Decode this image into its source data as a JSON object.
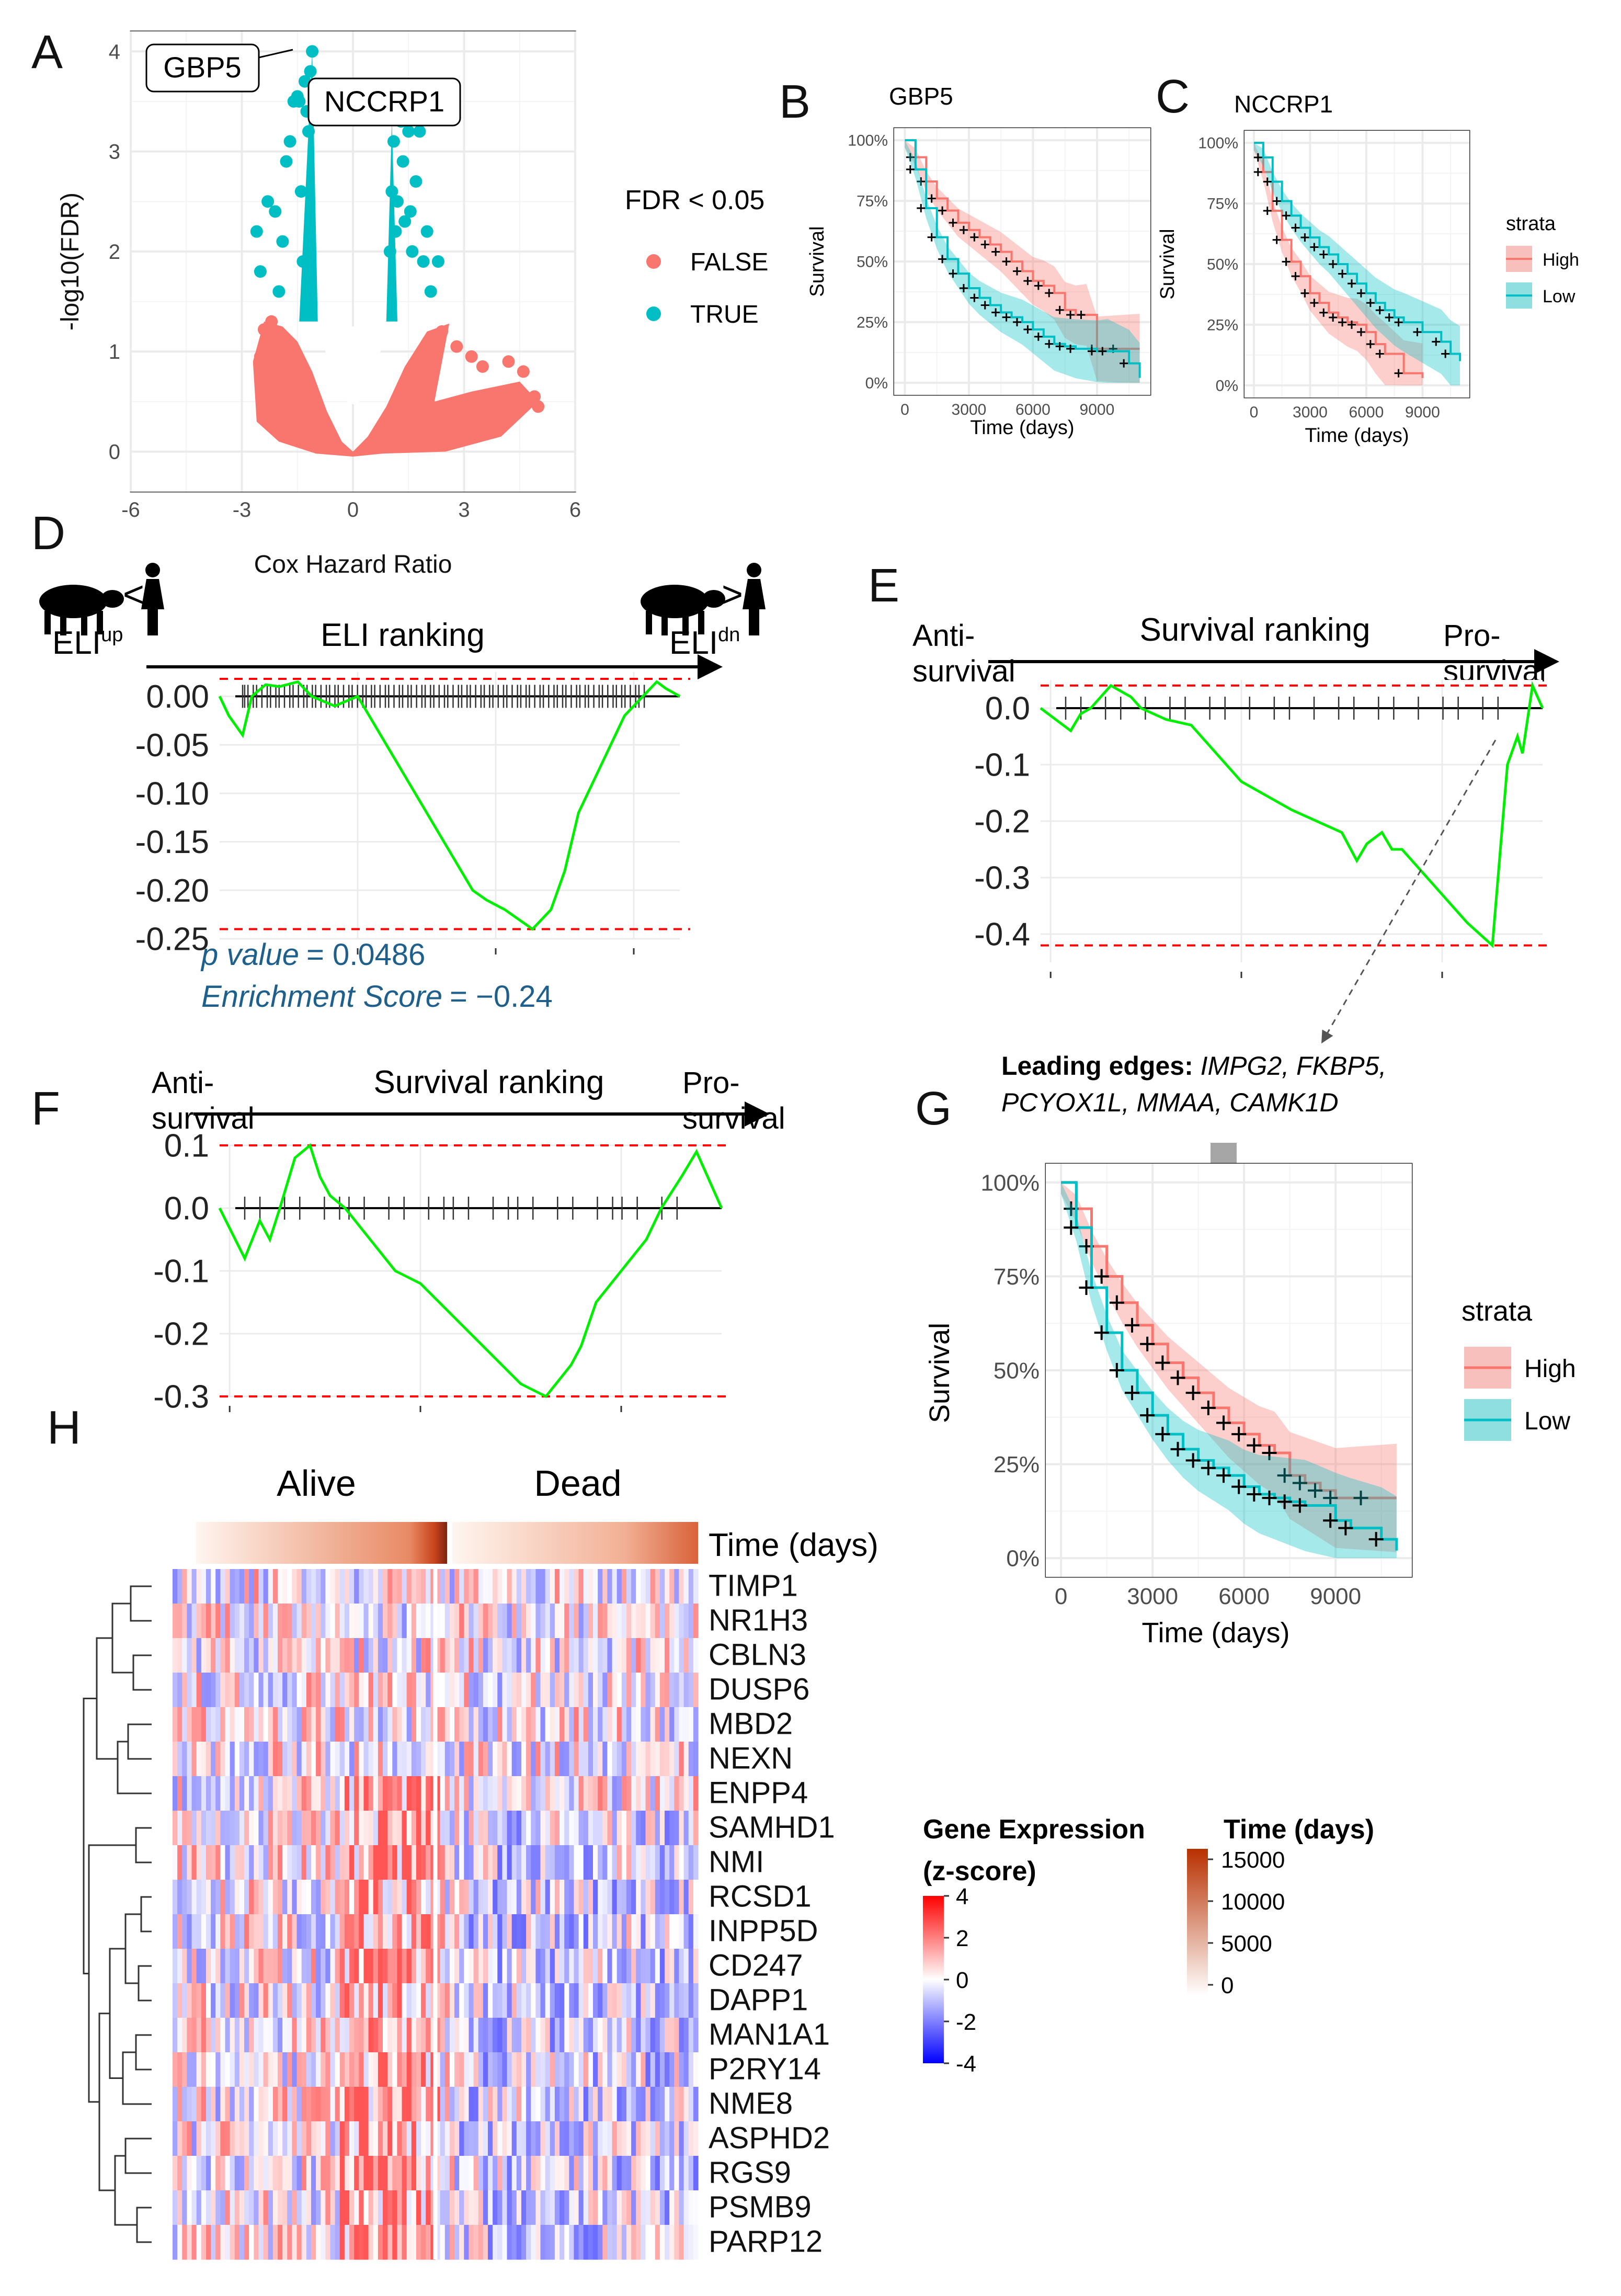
{
  "panels": {
    "A": "A",
    "B": "B",
    "C": "C",
    "D": "D",
    "E": "E",
    "F": "F",
    "G": "G",
    "H": "H"
  },
  "colors": {
    "red": "#f8766d",
    "teal": "#00bfc4",
    "green": "#00ee00",
    "ref": "#ff0000",
    "blue_text": "#1f5f8b"
  },
  "chart_data": [
    {
      "id": "A",
      "type": "scatter",
      "xlabel": "Cox Hazard Ratio",
      "ylabel": "-log10(FDR)",
      "xlim": [
        -6,
        6
      ],
      "ylim": [
        0,
        4
      ],
      "xticks": [
        "-6",
        "-3",
        "0",
        "3",
        "6"
      ],
      "yticks": [
        "0",
        "1",
        "2",
        "3",
        "4"
      ],
      "legend_title": "FDR < 0.05",
      "legend": [
        "FALSE",
        "TRUE"
      ],
      "labels": [
        {
          "text": "GBP5",
          "x": -1.1,
          "y": 4.0
        },
        {
          "text": "NCCRP1",
          "x": 1.2,
          "y": 3.5
        }
      ],
      "true_points": [
        [
          -2.6,
          2.2
        ],
        [
          -2.5,
          1.8
        ],
        [
          -2.3,
          2.5
        ],
        [
          -2.1,
          2.4
        ],
        [
          -2.0,
          1.6
        ],
        [
          -1.9,
          2.1
        ],
        [
          -1.8,
          2.9
        ],
        [
          -1.7,
          3.1
        ],
        [
          -1.6,
          3.5
        ],
        [
          -1.5,
          3.55
        ],
        [
          -1.45,
          3.5
        ],
        [
          -1.4,
          2.6
        ],
        [
          -1.35,
          1.9
        ],
        [
          -1.3,
          3.7
        ],
        [
          -1.25,
          3.4
        ],
        [
          -1.2,
          3.2
        ],
        [
          -1.15,
          3.8
        ],
        [
          -1.1,
          4.0
        ],
        [
          1.0,
          2.0
        ],
        [
          1.05,
          2.6
        ],
        [
          1.1,
          3.1
        ],
        [
          1.15,
          2.2
        ],
        [
          1.2,
          2.5
        ],
        [
          1.3,
          3.3
        ],
        [
          1.35,
          2.9
        ],
        [
          1.4,
          2.3
        ],
        [
          1.5,
          3.2
        ],
        [
          1.55,
          2.4
        ],
        [
          1.6,
          2.0
        ],
        [
          1.7,
          2.7
        ],
        [
          1.8,
          3.2
        ],
        [
          1.9,
          1.9
        ],
        [
          2.0,
          2.2
        ],
        [
          2.1,
          1.6
        ],
        [
          2.3,
          1.9
        ]
      ],
      "false_points": [
        [
          -2.2,
          1.3
        ],
        [
          -2.4,
          1.22
        ],
        [
          -2.5,
          0.95
        ],
        [
          -2.3,
          0.75
        ],
        [
          2.4,
          1.2
        ],
        [
          2.8,
          1.05
        ],
        [
          3.2,
          0.95
        ],
        [
          3.5,
          0.85
        ],
        [
          4.2,
          0.9
        ],
        [
          4.6,
          0.8
        ],
        [
          4.9,
          0.55
        ],
        [
          5.0,
          0.45
        ]
      ]
    },
    {
      "id": "B",
      "type": "line",
      "title": "GBP5",
      "xlabel": "Time (days)",
      "ylabel": "Survival",
      "xticks": [
        "0",
        "3000",
        "6000",
        "9000"
      ],
      "yticks": [
        "0%",
        "25%",
        "50%",
        "75%",
        "100%"
      ],
      "xlim": [
        -500,
        11500
      ],
      "ylim": [
        0,
        1
      ],
      "series": [
        {
          "name": "High",
          "x": [
            0,
            500,
            1000,
            1500,
            2000,
            2500,
            3000,
            3500,
            4000,
            4500,
            5000,
            5500,
            6000,
            6500,
            7000,
            7500,
            8000,
            8500,
            9000,
            10000,
            11000
          ],
          "y": [
            1,
            0.93,
            0.83,
            0.76,
            0.71,
            0.66,
            0.63,
            0.6,
            0.57,
            0.54,
            0.5,
            0.46,
            0.42,
            0.4,
            0.37,
            0.3,
            0.28,
            0.28,
            0.14,
            0.14,
            0.14
          ]
        },
        {
          "name": "Low",
          "x": [
            0,
            500,
            1000,
            1500,
            2000,
            2500,
            3000,
            3500,
            4000,
            4500,
            5000,
            5500,
            6000,
            6500,
            7000,
            7500,
            8000,
            9000,
            9500,
            10500,
            11000
          ],
          "y": [
            1,
            0.88,
            0.72,
            0.6,
            0.51,
            0.45,
            0.39,
            0.35,
            0.32,
            0.29,
            0.27,
            0.25,
            0.22,
            0.19,
            0.16,
            0.15,
            0.14,
            0.13,
            0.13,
            0.08,
            0.02
          ]
        }
      ]
    },
    {
      "id": "C",
      "type": "line",
      "title": "NCCRP1",
      "xlabel": "Time (days)",
      "ylabel": "Survival",
      "xticks": [
        "0",
        "3000",
        "6000",
        "9000"
      ],
      "yticks": [
        "0%",
        "25%",
        "50%",
        "75%",
        "100%"
      ],
      "xlim": [
        -500,
        11500
      ],
      "ylim": [
        0,
        1
      ],
      "legend_title": "strata",
      "legend": [
        "High",
        "Low"
      ],
      "series": [
        {
          "name": "High",
          "x": [
            0,
            500,
            1000,
            1500,
            2000,
            2500,
            3000,
            3500,
            4000,
            4500,
            5000,
            5500,
            6000,
            6500,
            7000,
            8000,
            9000
          ],
          "y": [
            1,
            0.88,
            0.72,
            0.6,
            0.51,
            0.45,
            0.38,
            0.34,
            0.3,
            0.28,
            0.26,
            0.25,
            0.22,
            0.17,
            0.13,
            0.05,
            0.03
          ]
        },
        {
          "name": "Low",
          "x": [
            0,
            500,
            1000,
            1500,
            2000,
            2500,
            3000,
            3500,
            4000,
            4500,
            5000,
            5500,
            6000,
            6500,
            7000,
            7500,
            8000,
            9000,
            10000,
            10500,
            11000
          ],
          "y": [
            1,
            0.94,
            0.84,
            0.76,
            0.7,
            0.65,
            0.61,
            0.57,
            0.54,
            0.5,
            0.46,
            0.42,
            0.38,
            0.34,
            0.31,
            0.28,
            0.26,
            0.22,
            0.18,
            0.13,
            0.1
          ]
        }
      ]
    },
    {
      "id": "D",
      "type": "line",
      "title": "ELI ranking",
      "left_label": "ELI",
      "left_sup": "up",
      "right_label": "ELI",
      "right_sup": "dn",
      "yticks": [
        "0.00",
        "-0.05",
        "-0.10",
        "-0.15",
        "-0.20",
        "-0.25"
      ],
      "ylim": [
        -0.25,
        0.025
      ],
      "max_line": 0.018,
      "min_line": -0.24,
      "x": [
        0,
        0.02,
        0.05,
        0.07,
        0.1,
        0.13,
        0.17,
        0.2,
        0.25,
        0.3,
        0.4,
        0.45,
        0.5,
        0.55,
        0.58,
        0.62,
        0.65,
        0.68,
        0.72,
        0.75,
        0.78,
        0.82,
        0.85,
        0.88,
        0.92,
        0.95,
        0.97,
        1
      ],
      "y": [
        0,
        -0.02,
        -0.04,
        0.0,
        0.012,
        0.01,
        0.015,
        0.0,
        -0.01,
        0.0,
        -0.08,
        -0.12,
        -0.16,
        -0.2,
        -0.21,
        -0.22,
        -0.23,
        -0.24,
        -0.22,
        -0.18,
        -0.12,
        -0.08,
        -0.05,
        -0.02,
        0.0,
        0.015,
        0.008,
        0
      ],
      "pvalue_label": "p value",
      "pvalue": "= 0.0486",
      "es_label": "Enrichment Score",
      "es": "= −0.24"
    },
    {
      "id": "E",
      "type": "line",
      "title": "Survival ranking",
      "left_label": "Anti-\nsurvival",
      "right_label": "Pro-\nsurvival",
      "yticks": [
        "0.0",
        "-0.1",
        "-0.2",
        "-0.3",
        "-0.4"
      ],
      "ylim": [
        -0.45,
        0.05
      ],
      "max_line": 0.04,
      "min_line": -0.42,
      "x": [
        0,
        0.03,
        0.06,
        0.08,
        0.1,
        0.12,
        0.14,
        0.18,
        0.2,
        0.25,
        0.3,
        0.35,
        0.4,
        0.5,
        0.6,
        0.63,
        0.65,
        0.68,
        0.7,
        0.72,
        0.75,
        0.8,
        0.85,
        0.9,
        0.93,
        0.95,
        0.96,
        0.98,
        1
      ],
      "y": [
        0,
        -0.02,
        -0.04,
        -0.01,
        0.0,
        0.02,
        0.04,
        0.02,
        0.0,
        -0.02,
        -0.03,
        -0.08,
        -0.13,
        -0.18,
        -0.22,
        -0.27,
        -0.24,
        -0.22,
        -0.25,
        -0.25,
        -0.28,
        -0.33,
        -0.38,
        -0.42,
        -0.1,
        -0.05,
        -0.08,
        0.04,
        0
      ]
    },
    {
      "id": "F",
      "type": "line",
      "title": "Survival ranking",
      "left_label": "Anti-\nsurvival",
      "right_label": "Pro-\nsurvival",
      "yticks": [
        "0.1",
        "0.0",
        "-0.1",
        "-0.2",
        "-0.3"
      ],
      "ylim": [
        -0.3,
        0.1
      ],
      "max_line": 0.1,
      "min_line": -0.3,
      "x": [
        0,
        0.05,
        0.08,
        0.1,
        0.12,
        0.15,
        0.18,
        0.2,
        0.22,
        0.25,
        0.3,
        0.35,
        0.4,
        0.45,
        0.5,
        0.55,
        0.6,
        0.65,
        0.7,
        0.72,
        0.75,
        0.8,
        0.85,
        0.88,
        0.92,
        0.95,
        1
      ],
      "y": [
        0,
        -0.08,
        -0.02,
        -0.05,
        0.0,
        0.08,
        0.1,
        0.05,
        0.02,
        0.0,
        -0.05,
        -0.1,
        -0.12,
        -0.16,
        -0.2,
        -0.24,
        -0.28,
        -0.3,
        -0.25,
        -0.22,
        -0.15,
        -0.1,
        -0.05,
        0.0,
        0.05,
        0.09,
        0
      ]
    },
    {
      "id": "G",
      "type": "line",
      "xlabel": "Time (days)",
      "ylabel": "Survival",
      "xticks": [
        "0",
        "3000",
        "6000",
        "9000"
      ],
      "yticks": [
        "0%",
        "25%",
        "50%",
        "75%",
        "100%"
      ],
      "xlim": [
        -500,
        11500
      ],
      "ylim": [
        0,
        1
      ],
      "legend_title": "strata",
      "legend": [
        "High",
        "Low"
      ],
      "leading_label": "Leading edges: ",
      "leading_genes1": "IMPG2, FKBP5,",
      "leading_genes2": "PCYOX1L, MMAA, CAMK1D",
      "series": [
        {
          "name": "High",
          "x": [
            0,
            500,
            1000,
            1500,
            2000,
            2500,
            3000,
            3500,
            4000,
            4500,
            5000,
            5500,
            6000,
            6500,
            7000,
            7500,
            8000,
            8500,
            9000,
            10000,
            11000
          ],
          "y": [
            1,
            0.93,
            0.83,
            0.75,
            0.68,
            0.62,
            0.57,
            0.52,
            0.48,
            0.44,
            0.4,
            0.36,
            0.33,
            0.3,
            0.28,
            0.22,
            0.2,
            0.18,
            0.16,
            0.16,
            0.16
          ]
        },
        {
          "name": "Low",
          "x": [
            0,
            500,
            1000,
            1500,
            2000,
            2500,
            3000,
            3500,
            4000,
            4500,
            5000,
            5500,
            6000,
            6500,
            7000,
            7500,
            8000,
            9000,
            9500,
            10500,
            11000
          ],
          "y": [
            1,
            0.88,
            0.72,
            0.6,
            0.5,
            0.44,
            0.38,
            0.33,
            0.29,
            0.26,
            0.24,
            0.22,
            0.19,
            0.17,
            0.16,
            0.15,
            0.14,
            0.1,
            0.08,
            0.05,
            0.02
          ]
        }
      ]
    },
    {
      "id": "H",
      "type": "heatmap",
      "col_groups": [
        "Alive",
        "Dead"
      ],
      "time_label": "Time (days)",
      "rows": [
        "TIMP1",
        "NR1H3",
        "CBLN3",
        "DUSP6",
        "MBD2",
        "NEXN",
        "ENPP4",
        "SAMHD1",
        "NMI",
        "RCSD1",
        "INPP5D",
        "CD247",
        "DAPP1",
        "MAN1A1",
        "P2RY14",
        "NME8",
        "ASPHD2",
        "RGS9",
        "PSMB9",
        "PARP12"
      ],
      "legend_expr_title": "Gene Expression",
      "legend_expr_sub": "(z-score)",
      "legend_expr_ticks": [
        "4",
        "2",
        "0",
        "-2",
        "-4"
      ],
      "legend_time_title": "Time (days)",
      "legend_time_ticks": [
        "15000",
        "10000",
        "5000",
        "0"
      ]
    }
  ]
}
